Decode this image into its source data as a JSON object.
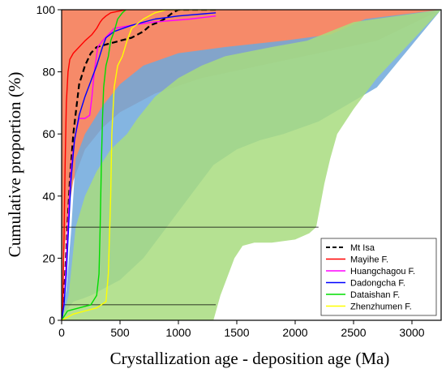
{
  "chart_data": {
    "type": "line",
    "xlabel": "Crystallization age - deposition age (Ma)",
    "ylabel": "Cumulative proportion (%)",
    "xlim": [
      0,
      3250
    ],
    "ylim": [
      0,
      100
    ],
    "x_ticks": [
      0,
      500,
      1000,
      1500,
      2000,
      2500,
      3000
    ],
    "y_ticks": [
      0,
      20,
      40,
      60,
      80,
      100
    ],
    "legend_position": "bottom-right",
    "reference_fields": [
      {
        "id": "convergent",
        "color": "#f4754f",
        "upper": [
          [
            0,
            100
          ],
          [
            3250,
            100
          ]
        ],
        "lower": [
          [
            0,
            0
          ],
          [
            20,
            20
          ],
          [
            50,
            33
          ],
          [
            100,
            45
          ],
          [
            200,
            55
          ],
          [
            350,
            62
          ],
          [
            500,
            67
          ],
          [
            800,
            73
          ],
          [
            1200,
            78
          ],
          [
            1700,
            82
          ],
          [
            2200,
            86
          ],
          [
            2700,
            90
          ],
          [
            3250,
            100
          ]
        ]
      },
      {
        "id": "collisional",
        "color": "#6fa8dc",
        "upper": [
          [
            0,
            0
          ],
          [
            40,
            10
          ],
          [
            80,
            28
          ],
          [
            120,
            52
          ],
          [
            200,
            60
          ],
          [
            350,
            69
          ],
          [
            500,
            76
          ],
          [
            700,
            82
          ],
          [
            1000,
            86
          ],
          [
            1400,
            88
          ],
          [
            1900,
            90
          ],
          [
            2300,
            92
          ],
          [
            2600,
            97
          ],
          [
            3250,
            100
          ]
        ],
        "lower": [
          [
            0,
            0
          ],
          [
            20,
            2
          ],
          [
            60,
            4
          ],
          [
            100,
            6
          ],
          [
            180,
            7
          ],
          [
            250,
            8
          ],
          [
            350,
            10
          ],
          [
            500,
            13
          ],
          [
            700,
            20
          ],
          [
            900,
            30
          ],
          [
            1100,
            40
          ],
          [
            1300,
            50
          ],
          [
            1500,
            55
          ],
          [
            1700,
            58
          ],
          [
            1900,
            60
          ],
          [
            2200,
            64
          ],
          [
            2700,
            75
          ],
          [
            3250,
            100
          ]
        ]
      },
      {
        "id": "extensional",
        "color": "#a8dc7f",
        "upper": [
          [
            0,
            0
          ],
          [
            60,
            8
          ],
          [
            120,
            30
          ],
          [
            200,
            40
          ],
          [
            300,
            48
          ],
          [
            420,
            55
          ],
          [
            560,
            60
          ],
          [
            650,
            65
          ],
          [
            800,
            72
          ],
          [
            1000,
            78
          ],
          [
            1200,
            82
          ],
          [
            1400,
            85
          ],
          [
            1800,
            88
          ],
          [
            2100,
            90
          ],
          [
            2300,
            93
          ],
          [
            2500,
            96
          ],
          [
            3250,
            100
          ]
        ],
        "lower": [
          [
            0,
            0
          ],
          [
            1000,
            0
          ],
          [
            1300,
            0
          ],
          [
            1360,
            8
          ],
          [
            1400,
            12
          ],
          [
            1480,
            20
          ],
          [
            1550,
            24
          ],
          [
            1650,
            25
          ],
          [
            1800,
            25
          ],
          [
            2000,
            26
          ],
          [
            2120,
            28
          ],
          [
            2180,
            30
          ],
          [
            2220,
            38
          ],
          [
            2250,
            44
          ],
          [
            2300,
            52
          ],
          [
            2360,
            60
          ],
          [
            2500,
            68
          ],
          [
            2700,
            78
          ],
          [
            3000,
            90
          ],
          [
            3250,
            100
          ]
        ]
      }
    ],
    "reference_lines": [
      {
        "y": 30,
        "x_range": [
          0,
          2200
        ]
      },
      {
        "y": 5,
        "x_range": [
          0,
          1320
        ]
      }
    ],
    "series": [
      {
        "name": "Mt Isa",
        "color": "#000000",
        "dash": true,
        "points": [
          [
            0,
            0
          ],
          [
            15,
            5
          ],
          [
            30,
            15
          ],
          [
            50,
            30
          ],
          [
            70,
            45
          ],
          [
            100,
            60
          ],
          [
            150,
            76
          ],
          [
            200,
            82
          ],
          [
            250,
            86
          ],
          [
            300,
            88
          ],
          [
            400,
            89
          ],
          [
            500,
            90
          ],
          [
            600,
            91
          ],
          [
            700,
            93
          ],
          [
            760,
            95
          ],
          [
            830,
            96
          ],
          [
            880,
            97
          ],
          [
            950,
            99
          ],
          [
            1000,
            100
          ],
          [
            1320,
            100
          ]
        ]
      },
      {
        "name": "Mayihe F.",
        "color": "#ff0000",
        "dash": false,
        "points": [
          [
            0,
            0
          ],
          [
            10,
            5
          ],
          [
            20,
            25
          ],
          [
            30,
            50
          ],
          [
            40,
            70
          ],
          [
            55,
            80
          ],
          [
            70,
            84
          ],
          [
            100,
            86
          ],
          [
            150,
            88
          ],
          [
            200,
            90
          ],
          [
            260,
            92
          ],
          [
            300,
            94
          ],
          [
            330,
            96
          ],
          [
            350,
            97
          ],
          [
            380,
            98
          ],
          [
            420,
            99
          ],
          [
            550,
            100
          ]
        ]
      },
      {
        "name": "Huangchagou F.",
        "color": "#ff00ff",
        "dash": false,
        "points": [
          [
            0,
            0
          ],
          [
            20,
            5
          ],
          [
            40,
            20
          ],
          [
            60,
            35
          ],
          [
            80,
            48
          ],
          [
            100,
            55
          ],
          [
            120,
            60
          ],
          [
            150,
            65
          ],
          [
            200,
            65
          ],
          [
            240,
            66
          ],
          [
            260,
            72
          ],
          [
            280,
            80
          ],
          [
            310,
            88
          ],
          [
            350,
            90
          ],
          [
            400,
            92
          ],
          [
            450,
            94
          ],
          [
            600,
            95
          ],
          [
            780,
            96
          ],
          [
            1100,
            97
          ],
          [
            1320,
            98
          ]
        ]
      },
      {
        "name": "Dadongcha F.",
        "color": "#0000ff",
        "dash": false,
        "points": [
          [
            0,
            0
          ],
          [
            20,
            5
          ],
          [
            40,
            15
          ],
          [
            60,
            30
          ],
          [
            80,
            45
          ],
          [
            110,
            58
          ],
          [
            150,
            66
          ],
          [
            200,
            72
          ],
          [
            250,
            77
          ],
          [
            300,
            82
          ],
          [
            350,
            88
          ],
          [
            380,
            91
          ],
          [
            450,
            93
          ],
          [
            600,
            95
          ],
          [
            800,
            97
          ],
          [
            1000,
            98
          ],
          [
            1320,
            99
          ]
        ]
      },
      {
        "name": "Dataishan F.",
        "color": "#00dd00",
        "dash": false,
        "points": [
          [
            0,
            0
          ],
          [
            50,
            3
          ],
          [
            150,
            4
          ],
          [
            250,
            5
          ],
          [
            300,
            8
          ],
          [
            320,
            15
          ],
          [
            330,
            30
          ],
          [
            340,
            50
          ],
          [
            350,
            65
          ],
          [
            360,
            75
          ],
          [
            380,
            82
          ],
          [
            400,
            85
          ],
          [
            420,
            90
          ],
          [
            450,
            93
          ],
          [
            480,
            97
          ],
          [
            520,
            99
          ],
          [
            550,
            100
          ]
        ]
      },
      {
        "name": "Zhenzhumen F.",
        "color": "#ffff00",
        "dash": false,
        "points": [
          [
            0,
            0
          ],
          [
            100,
            2
          ],
          [
            200,
            3
          ],
          [
            300,
            4
          ],
          [
            380,
            6
          ],
          [
            400,
            15
          ],
          [
            420,
            40
          ],
          [
            430,
            60
          ],
          [
            450,
            75
          ],
          [
            480,
            82
          ],
          [
            520,
            85
          ],
          [
            560,
            90
          ],
          [
            600,
            94
          ],
          [
            700,
            97
          ],
          [
            800,
            99
          ],
          [
            900,
            100
          ],
          [
            1320,
            100
          ]
        ]
      }
    ]
  }
}
